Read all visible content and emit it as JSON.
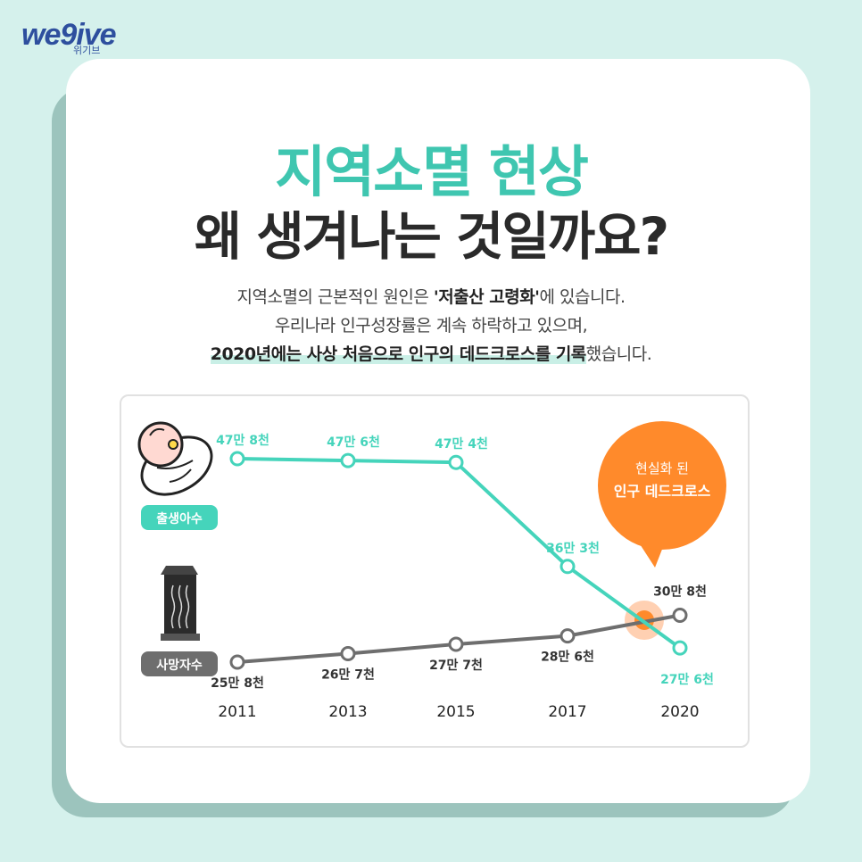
{
  "brand": {
    "logo_text": "we9ive",
    "logo_sub": "위기브"
  },
  "title": {
    "line1": "지역소멸 현상",
    "line2": "왜 생겨나는 것일까요?"
  },
  "description": {
    "line1_pre": "지역소멸의 근본적인 원인은 ",
    "line1_bold": "'저출산 고령화'",
    "line1_post": "에 있습니다.",
    "line2": "우리나라 인구성장률은 계속 하락하고 있으며,",
    "line3_bold": "2020년에는 사상 처음으로 인구의 데드크로스를 기록",
    "line3_post": "했습니다."
  },
  "colors": {
    "births": "#45d4bb",
    "deaths": "#6e6e6e",
    "accent": "#ff8a2b",
    "title_teal": "#3fc6b0"
  },
  "chart_data": {
    "type": "line",
    "categories": [
      "2011",
      "2013",
      "2015",
      "2017",
      "2020"
    ],
    "series": [
      {
        "name": "출생아수",
        "values": [
          478000,
          476000,
          474000,
          363000,
          276000
        ],
        "labels": [
          "47만 8천",
          "47만 6천",
          "47만 4천",
          "36만 3천",
          "27만 6천"
        ],
        "color": "#45d4bb",
        "icon": "baby-icon"
      },
      {
        "name": "사망자수",
        "values": [
          258000,
          267000,
          277000,
          286000,
          308000
        ],
        "labels": [
          "25만 8천",
          "26만 7천",
          "27만 7천",
          "28만 6천",
          "30만 8천"
        ],
        "color": "#6e6e6e",
        "icon": "tombstone-icon"
      }
    ],
    "callout": {
      "line1": "현실화 된",
      "line2": "인구 데드크로스"
    }
  }
}
